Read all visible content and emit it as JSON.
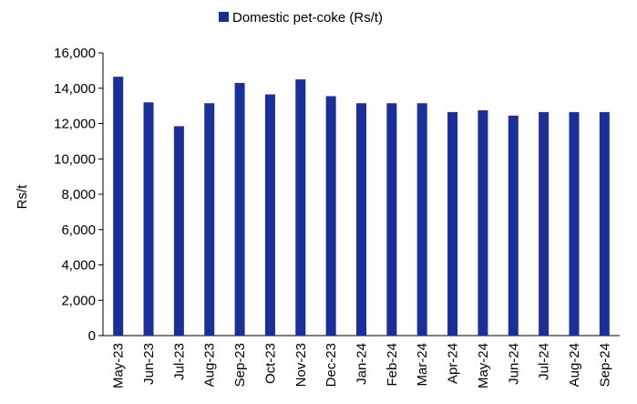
{
  "chart_data": {
    "type": "bar",
    "title": "",
    "xlabel": "",
    "ylabel": "Rs/t",
    "ylim": [
      0,
      16000
    ],
    "yticks": [
      0,
      2000,
      4000,
      6000,
      8000,
      10000,
      12000,
      14000,
      16000
    ],
    "ytick_labels": [
      "0",
      "2,000",
      "4,000",
      "6,000",
      "8,000",
      "10,000",
      "12,000",
      "14,000",
      "16,000"
    ],
    "grid": false,
    "legend_position": "top-center",
    "categories": [
      "May-23",
      "Jun-23",
      "Jul-23",
      "Aug-23",
      "Sep-23",
      "Oct-23",
      "Nov-23",
      "Dec-23",
      "Jan-24",
      "Feb-24",
      "Mar-24",
      "Apr-24",
      "May-24",
      "Jun-24",
      "Jul-24",
      "Aug-24",
      "Sep-24"
    ],
    "series": [
      {
        "name": "Domestic pet-coke (Rs/t)",
        "color": "#1a2f99",
        "values": [
          14650,
          13200,
          11850,
          13150,
          14300,
          13650,
          14500,
          13550,
          13150,
          13150,
          13150,
          12650,
          12750,
          12450,
          12650,
          12650,
          12650
        ]
      }
    ]
  }
}
